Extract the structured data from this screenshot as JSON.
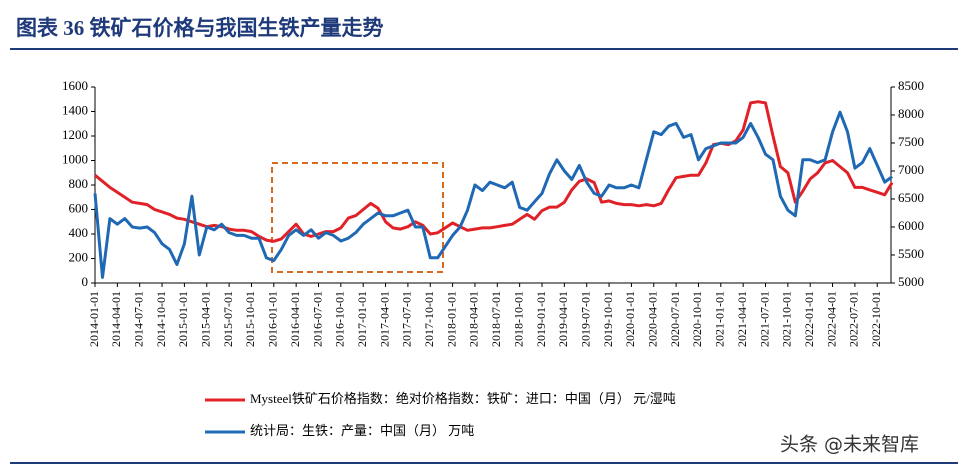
{
  "chart_data": {
    "type": "line",
    "title": "图表 36   铁矿石价格与我国生铁产量走势",
    "categories": [
      "2014-01-01",
      null,
      null,
      "2014-04-01",
      null,
      null,
      "2014-07-01",
      null,
      null,
      "2014-10-01",
      null,
      null,
      "2015-01-01",
      null,
      null,
      "2015-04-01",
      null,
      null,
      "2015-07-01",
      null,
      null,
      "2015-10-01",
      null,
      null,
      "2016-01-01",
      null,
      null,
      "2016-04-01",
      null,
      null,
      "2016-07-01",
      null,
      null,
      "2016-10-01",
      null,
      null,
      "2017-01-01",
      null,
      null,
      "2017-04-01",
      null,
      null,
      "2017-07-01",
      null,
      null,
      "2017-10-01",
      null,
      null,
      "2018-01-01",
      null,
      null,
      "2018-04-01",
      null,
      null,
      "2018-07-01",
      null,
      null,
      "2018-10-01",
      null,
      null,
      "2019-01-01",
      null,
      null,
      "2019-04-01",
      null,
      null,
      "2019-07-01",
      null,
      null,
      "2019-10-01",
      null,
      null,
      "2020-01-01",
      null,
      null,
      "2020-04-01",
      null,
      null,
      "2020-07-01",
      null,
      null,
      "2020-10-01",
      null,
      null,
      "2021-01-01",
      null,
      null,
      "2021-04-01",
      null,
      null,
      "2021-07-01",
      null,
      null,
      "2021-10-01",
      null,
      null,
      "2022-01-01",
      null,
      null,
      "2022-04-01",
      null,
      null,
      "2022-07-01",
      null,
      null,
      "2022-10-01",
      null,
      null
    ],
    "series": [
      {
        "name": "Mysteel铁矿石价格指数：绝对价格指数：铁矿：进口：中国（月） 元/湿吨",
        "color": "#e02127",
        "axis": "y",
        "values": [
          880,
          830,
          780,
          740,
          700,
          660,
          650,
          640,
          600,
          580,
          560,
          530,
          520,
          500,
          480,
          460,
          470,
          460,
          440,
          430,
          430,
          420,
          380,
          350,
          340,
          360,
          420,
          480,
          400,
          380,
          400,
          420,
          420,
          450,
          530,
          550,
          600,
          650,
          610,
          500,
          450,
          440,
          460,
          500,
          470,
          400,
          410,
          450,
          490,
          460,
          430,
          440,
          450,
          450,
          460,
          470,
          480,
          520,
          560,
          520,
          590,
          620,
          620,
          660,
          760,
          830,
          850,
          820,
          660,
          670,
          650,
          640,
          640,
          630,
          640,
          630,
          650,
          760,
          860,
          870,
          880,
          880,
          980,
          1130,
          1140,
          1130,
          1160,
          1250,
          1470,
          1480,
          1470,
          1200,
          950,
          900,
          660,
          750,
          850,
          900,
          980,
          1000,
          950,
          900,
          780,
          780,
          760,
          740,
          720,
          820
        ]
      },
      {
        "name": "统计局：生铁：产量：中国（月） 万吨",
        "color": "#1f68b4",
        "axis": "y2",
        "values": [
          6600,
          5100,
          6150,
          6050,
          6150,
          6000,
          5980,
          6000,
          5900,
          5700,
          5600,
          5330,
          5700,
          6550,
          5500,
          6000,
          5950,
          6050,
          5900,
          5850,
          5850,
          5800,
          5800,
          5450,
          5400,
          5600,
          5850,
          5950,
          5850,
          5950,
          5800,
          5900,
          5850,
          5750,
          5800,
          5900,
          6050,
          6150,
          6250,
          6200,
          6200,
          6250,
          6300,
          6000,
          6000,
          5450,
          5450,
          5650,
          5850,
          6000,
          6300,
          6750,
          6650,
          6800,
          6750,
          6700,
          6800,
          6350,
          6300,
          6450,
          6600,
          6950,
          7200,
          7000,
          6850,
          7100,
          6800,
          6600,
          6550,
          6750,
          6700,
          6700,
          6750,
          6700,
          7200,
          7700,
          7650,
          7800,
          7850,
          7600,
          7650,
          7200,
          7400,
          7450,
          7500,
          7500,
          7500,
          7600,
          7850,
          7600,
          7300,
          7200,
          6550,
          6300,
          6200,
          7200,
          7200,
          7150,
          7200,
          7700,
          8050,
          7700,
          7050,
          7150,
          7400,
          7100,
          6800,
          6900
        ]
      }
    ],
    "ylim": [
      0,
      1600
    ],
    "yticks": [
      0,
      200,
      400,
      600,
      800,
      1000,
      1200,
      1400,
      1600
    ],
    "y2lim": [
      5000,
      8500
    ],
    "y2ticks": [
      5000,
      5500,
      6000,
      6500,
      7000,
      7500,
      8000,
      8500
    ]
  },
  "watermark": "头条 @未来智库"
}
